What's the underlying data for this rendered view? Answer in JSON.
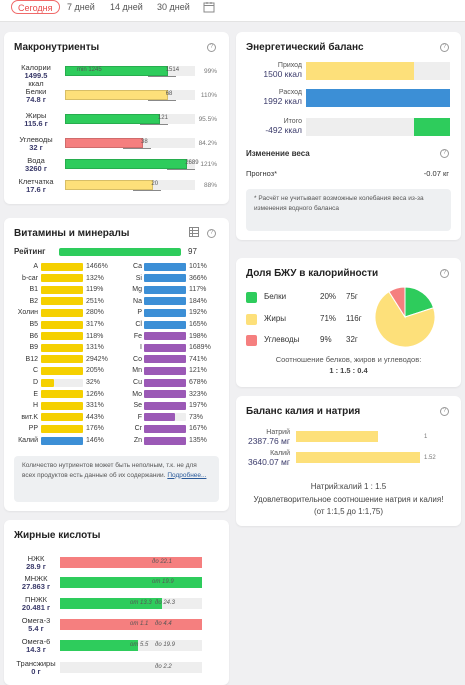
{
  "periods": [
    "Сегодня",
    "7 дней",
    "14 дней",
    "30 дней"
  ],
  "macro": {
    "title": "Макронутриенты",
    "rows": [
      {
        "name": "Калории",
        "value": "1499.5",
        "unit": "ккал",
        "mark_left": "min 1245",
        "mark_right": "1514",
        "pct": "99%",
        "color": "#2ecc5c",
        "fill": 0.79
      },
      {
        "name": "Белки",
        "value": "74.8 г",
        "unit": "",
        "mark_left": "",
        "mark_right": "68",
        "pct": "110%",
        "color": "#fde07a",
        "fill": 0.79
      },
      {
        "name": "Жиры",
        "value": "115.6 г",
        "unit": "",
        "mark_left": "",
        "mark_right": "121",
        "pct": "95.5%",
        "color": "#2ecc5c",
        "fill": 0.73
      },
      {
        "name": "Углеводы",
        "value": "32 г",
        "unit": "",
        "mark_left": "",
        "mark_right": "38",
        "pct": "84.2%",
        "color": "#f57f7f",
        "fill": 0.6
      },
      {
        "name": "Вода",
        "value": "3260 г",
        "unit": "",
        "mark_left": "",
        "mark_right": "2689",
        "pct": "121%",
        "color": "#2ecc5c",
        "fill": 0.94
      },
      {
        "name": "Клетчатка",
        "value": "17.6 г",
        "unit": "",
        "mark_left": "",
        "mark_right": "20",
        "pct": "88%",
        "color": "#fde07a",
        "fill": 0.68
      }
    ]
  },
  "vitamins": {
    "title": "Витамины и минералы",
    "rating_label": "Рейтинг",
    "rating_value": "97",
    "left": [
      {
        "n": "A",
        "p": "1466%",
        "c": "#f5d000",
        "f": 1.0
      },
      {
        "n": "b-car",
        "p": "132%",
        "c": "#f5d000",
        "f": 1.0
      },
      {
        "n": "B1",
        "p": "119%",
        "c": "#f5d000",
        "f": 1.0
      },
      {
        "n": "B2",
        "p": "251%",
        "c": "#f5d000",
        "f": 1.0
      },
      {
        "n": "Холин",
        "p": "280%",
        "c": "#f5d000",
        "f": 1.0
      },
      {
        "n": "B5",
        "p": "317%",
        "c": "#f5d000",
        "f": 1.0
      },
      {
        "n": "B6",
        "p": "118%",
        "c": "#f5d000",
        "f": 1.0
      },
      {
        "n": "B9",
        "p": "131%",
        "c": "#f5d000",
        "f": 1.0
      },
      {
        "n": "B12",
        "p": "2942%",
        "c": "#f5d000",
        "f": 1.0
      },
      {
        "n": "C",
        "p": "205%",
        "c": "#f5d000",
        "f": 1.0
      },
      {
        "n": "D",
        "p": "32%",
        "c": "#f5d000",
        "f": 0.32
      },
      {
        "n": "E",
        "p": "126%",
        "c": "#f5d000",
        "f": 1.0
      },
      {
        "n": "H",
        "p": "331%",
        "c": "#f5d000",
        "f": 1.0
      },
      {
        "n": "вит.K",
        "p": "443%",
        "c": "#f5d000",
        "f": 1.0
      },
      {
        "n": "PP",
        "p": "176%",
        "c": "#f5d000",
        "f": 1.0
      },
      {
        "n": "Калий",
        "p": "146%",
        "c": "#3c8fd6",
        "f": 1.0
      }
    ],
    "right": [
      {
        "n": "Ca",
        "p": "101%",
        "c": "#3c8fd6",
        "f": 1.0
      },
      {
        "n": "Si",
        "p": "366%",
        "c": "#3c8fd6",
        "f": 1.0
      },
      {
        "n": "Mg",
        "p": "117%",
        "c": "#3c8fd6",
        "f": 1.0
      },
      {
        "n": "Na",
        "p": "184%",
        "c": "#3c8fd6",
        "f": 1.0
      },
      {
        "n": "P",
        "p": "192%",
        "c": "#3c8fd6",
        "f": 1.0
      },
      {
        "n": "Cl",
        "p": "165%",
        "c": "#3c8fd6",
        "f": 1.0
      },
      {
        "n": "Fe",
        "p": "198%",
        "c": "#9b59b6",
        "f": 1.0
      },
      {
        "n": "I",
        "p": "1689%",
        "c": "#9b59b6",
        "f": 1.0
      },
      {
        "n": "Co",
        "p": "741%",
        "c": "#9b59b6",
        "f": 1.0
      },
      {
        "n": "Mn",
        "p": "121%",
        "c": "#9b59b6",
        "f": 1.0
      },
      {
        "n": "Cu",
        "p": "678%",
        "c": "#9b59b6",
        "f": 1.0
      },
      {
        "n": "Mo",
        "p": "323%",
        "c": "#9b59b6",
        "f": 1.0
      },
      {
        "n": "Se",
        "p": "197%",
        "c": "#9b59b6",
        "f": 1.0
      },
      {
        "n": "F",
        "p": "73%",
        "c": "#9b59b6",
        "f": 0.73
      },
      {
        "n": "Cr",
        "p": "167%",
        "c": "#9b59b6",
        "f": 1.0
      },
      {
        "n": "Zn",
        "p": "135%",
        "c": "#9b59b6",
        "f": 1.0
      }
    ],
    "note": "Количество нутриентов может быть неполным, т.к. не для всех продуктов есть данные об их содержании.",
    "note_link": "Подробнее..."
  },
  "fatty": {
    "title": "Жирные кислоты",
    "rows": [
      {
        "name": "НЖК",
        "value": "28.9 г",
        "mark": "до 22.1",
        "mark2": "",
        "color": "#f57f7f",
        "fill": 1.0
      },
      {
        "name": "МНЖК",
        "value": "27.863 г",
        "mark": "от 19.9",
        "mark2": "",
        "color": "#2ecc5c",
        "fill": 1.0
      },
      {
        "name": "ПНЖК",
        "value": "20.481 г",
        "mark": "от 13.3",
        "mark2": "до 24.3",
        "color": "#2ecc5c",
        "fill": 0.72
      },
      {
        "name": "Омега-3",
        "value": "5.4 г",
        "mark": "от 1.1",
        "mark2": "до 4.4",
        "color": "#f57f7f",
        "fill": 1.0
      },
      {
        "name": "Омега-6",
        "value": "14.3 г",
        "mark": "от 5.5",
        "mark2": "до 19.9",
        "color": "#2ecc5c",
        "fill": 0.55
      },
      {
        "name": "Трансжиры",
        "value": "0 г",
        "mark": "",
        "mark2": "до 2.2",
        "color": "#2ecc5c",
        "fill": 0.0
      }
    ]
  },
  "energy": {
    "title": "Энергетический баланс",
    "rows": [
      {
        "label": "Приход",
        "value": "1500 ккал",
        "color": "#fde07a",
        "fill": 0.75
      },
      {
        "label": "Расход",
        "value": "1992 ккал",
        "color": "#3c8fd6",
        "fill": 1.0
      },
      {
        "label": "Итого",
        "value": "-492 ккал",
        "color": "#2ecc5c",
        "fill": 0.25
      }
    ],
    "weight_title": "Изменение веса",
    "forecast_label": "Прогноз*",
    "forecast_value": "-0.07 кг",
    "note": "* Расчёт не учитывает возможные колебания веса из-за изменения водного баланса"
  },
  "bju": {
    "title": "Доля БЖУ в калорийности",
    "rows": [
      {
        "name": "Белки",
        "pct": "20%",
        "grams": "75г",
        "color": "#2ecc5c"
      },
      {
        "name": "Жиры",
        "pct": "71%",
        "grams": "116г",
        "color": "#fde07a"
      },
      {
        "name": "Углеводы",
        "pct": "9%",
        "grams": "32г",
        "color": "#f57f7f"
      }
    ],
    "ratio_label": "Соотношение белков, жиров и углеводов:",
    "ratio": "1 : 1.5 : 0.4",
    "chart_data": {
      "type": "pie",
      "categories": [
        "Белки",
        "Жиры",
        "Углеводы"
      ],
      "values": [
        20,
        71,
        9
      ]
    }
  },
  "kna": {
    "title": "Баланс калия и натрия",
    "rows": [
      {
        "name": "Натрий",
        "value": "2387.76 мг",
        "mark": "1",
        "color": "#fde07a",
        "fill": 0.66
      },
      {
        "name": "Калий",
        "value": "3640.07 мг",
        "mark": "1.52",
        "color": "#fde07a",
        "fill": 1.0
      }
    ],
    "ratio": "Натрий:калий 1 : 1.5",
    "desc": "Удовлетворительное соотношение натрия и калия! (от 1:1,5 до 1:1,75)"
  },
  "colors": {
    "accent": "#e94b4b",
    "green": "#2ecc5c",
    "yellow": "#fde07a",
    "red": "#f57f7f",
    "blue": "#3c8fd6",
    "purple": "#9b59b6"
  }
}
